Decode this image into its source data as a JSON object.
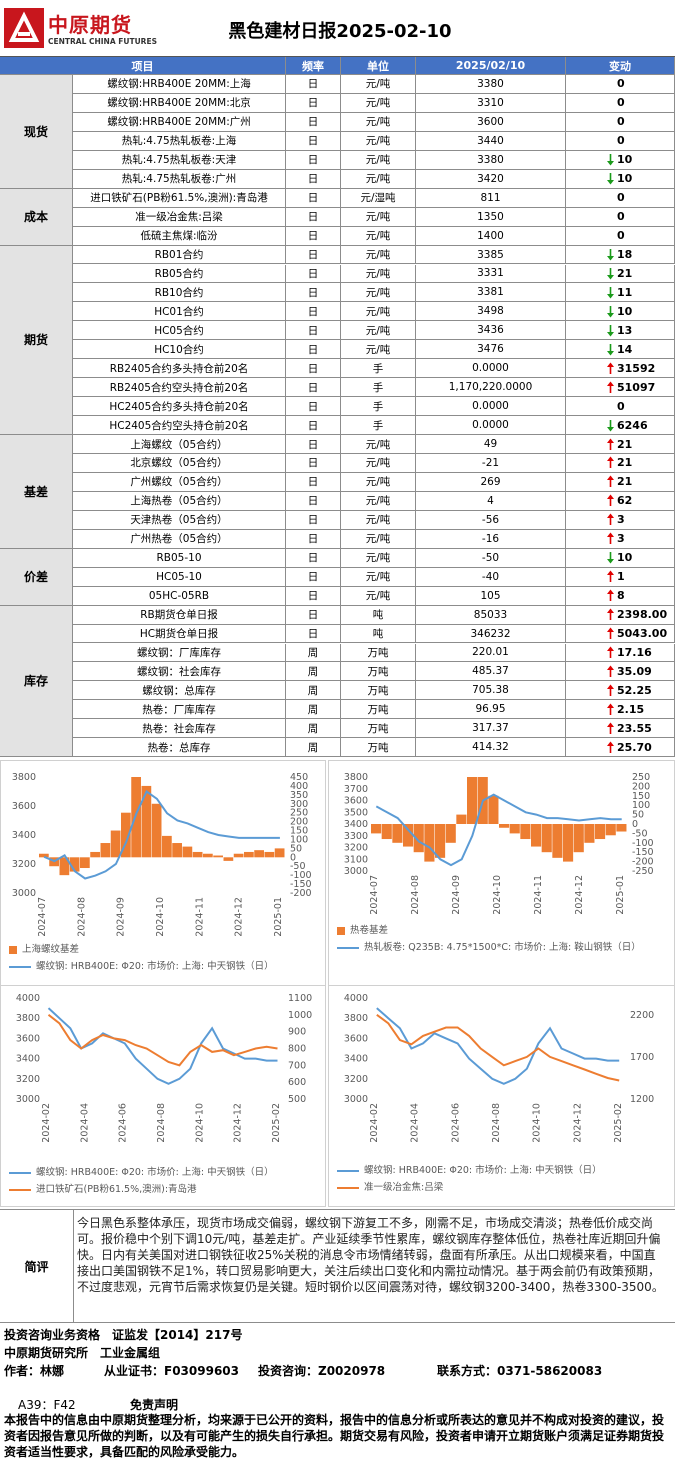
{
  "header": {
    "logo_cn": "中原期货",
    "logo_en": "CENTRAL CHINA FUTURES",
    "title": "黑色建材日报2025-02-10"
  },
  "table": {
    "columns": [
      "项目",
      "频率",
      "单位",
      "2025/02/10",
      "变动"
    ],
    "groups": [
      {
        "name": "现货",
        "rows": [
          {
            "item": "螺纹钢:HRB400E 20MM:上海",
            "freq": "日",
            "unit": "元/吨",
            "value": "3380",
            "change": "0"
          },
          {
            "item": "螺纹钢:HRB400E 20MM:北京",
            "freq": "日",
            "unit": "元/吨",
            "value": "3310",
            "change": "0"
          },
          {
            "item": "螺纹钢:HRB400E 20MM:广州",
            "freq": "日",
            "unit": "元/吨",
            "value": "3600",
            "change": "0"
          },
          {
            "item": "热轧:4.75热轧板卷:上海",
            "freq": "日",
            "unit": "元/吨",
            "value": "3440",
            "change": "0"
          },
          {
            "item": "热轧:4.75热轧板卷:天津",
            "freq": "日",
            "unit": "元/吨",
            "value": "3380",
            "change": "10",
            "trend": "down"
          },
          {
            "item": "热轧:4.75热轧板卷:广州",
            "freq": "日",
            "unit": "元/吨",
            "value": "3420",
            "change": "10",
            "trend": "down"
          }
        ]
      },
      {
        "name": "成本",
        "rows": [
          {
            "item": "进口铁矿石(PB粉61.5%,澳洲):青岛港",
            "freq": "日",
            "unit": "元/湿吨",
            "value": "811",
            "change": "0"
          },
          {
            "item": "准一级冶金焦:吕梁",
            "freq": "日",
            "unit": "元/吨",
            "value": "1350",
            "change": "0"
          },
          {
            "item": "低硫主焦煤:临汾",
            "freq": "日",
            "unit": "元/吨",
            "value": "1400",
            "change": "0"
          }
        ]
      },
      {
        "name": "期货",
        "rows": [
          {
            "item": "RB01合约",
            "freq": "日",
            "unit": "元/吨",
            "value": "3385",
            "change": "18",
            "trend": "down"
          },
          {
            "item": "RB05合约",
            "freq": "日",
            "unit": "元/吨",
            "value": "3331",
            "change": "21",
            "trend": "down"
          },
          {
            "item": "RB10合约",
            "freq": "日",
            "unit": "元/吨",
            "value": "3381",
            "change": "11",
            "trend": "down"
          },
          {
            "item": "HC01合约",
            "freq": "日",
            "unit": "元/吨",
            "value": "3498",
            "change": "10",
            "trend": "down"
          },
          {
            "item": "HC05合约",
            "freq": "日",
            "unit": "元/吨",
            "value": "3436",
            "change": "13",
            "trend": "down"
          },
          {
            "item": "HC10合约",
            "freq": "日",
            "unit": "元/吨",
            "value": "3476",
            "change": "14",
            "trend": "down"
          },
          {
            "item": "RB2405合约多头持仓前20名",
            "freq": "日",
            "unit": "手",
            "value": "0.0000",
            "change": "31592",
            "trend": "up"
          },
          {
            "item": "RB2405合约空头持仓前20名",
            "freq": "日",
            "unit": "手",
            "value": "1,170,220.0000",
            "change": "51097",
            "trend": "up"
          },
          {
            "item": "HC2405合约多头持仓前20名",
            "freq": "日",
            "unit": "手",
            "value": "0.0000",
            "change": "0"
          },
          {
            "item": "HC2405合约空头持仓前20名",
            "freq": "日",
            "unit": "手",
            "value": "0.0000",
            "change": "6246",
            "trend": "down"
          }
        ]
      },
      {
        "name": "基差",
        "rows": [
          {
            "item": "上海螺纹（05合约）",
            "freq": "日",
            "unit": "元/吨",
            "value": "49",
            "change": "21",
            "trend": "up"
          },
          {
            "item": "北京螺纹（05合约）",
            "freq": "日",
            "unit": "元/吨",
            "value": "-21",
            "change": "21",
            "trend": "up"
          },
          {
            "item": "广州螺纹（05合约）",
            "freq": "日",
            "unit": "元/吨",
            "value": "269",
            "change": "21",
            "trend": "up"
          },
          {
            "item": "上海热卷（05合约）",
            "freq": "日",
            "unit": "元/吨",
            "value": "4",
            "change": "62",
            "trend": "up"
          },
          {
            "item": "天津热卷（05合约）",
            "freq": "日",
            "unit": "元/吨",
            "value": "-56",
            "change": "3",
            "trend": "up"
          },
          {
            "item": "广州热卷（05合约）",
            "freq": "日",
            "unit": "元/吨",
            "value": "-16",
            "change": "3",
            "trend": "up"
          }
        ]
      },
      {
        "name": "价差",
        "rows": [
          {
            "item": "RB05-10",
            "freq": "日",
            "unit": "元/吨",
            "value": "-50",
            "change": "10",
            "trend": "down"
          },
          {
            "item": "HC05-10",
            "freq": "日",
            "unit": "元/吨",
            "value": "-40",
            "change": "1",
            "trend": "up"
          },
          {
            "item": "05HC-05RB",
            "freq": "日",
            "unit": "元/吨",
            "value": "105",
            "change": "8",
            "trend": "up"
          }
        ]
      },
      {
        "name": "库存",
        "rows": [
          {
            "item": "RB期货仓单日报",
            "freq": "日",
            "unit": "吨",
            "value": "85033",
            "change": "2398.00",
            "trend": "up"
          },
          {
            "item": "HC期货仓单日报",
            "freq": "日",
            "unit": "吨",
            "value": "346232",
            "change": "5043.00",
            "trend": "up"
          },
          {
            "item": "螺纹钢：厂库库存",
            "freq": "周",
            "unit": "万吨",
            "value": "220.01",
            "change": "17.16",
            "trend": "up"
          },
          {
            "item": "螺纹钢：社会库存",
            "freq": "周",
            "unit": "万吨",
            "value": "485.37",
            "change": "35.09",
            "trend": "up"
          },
          {
            "item": "螺纹钢：总库存",
            "freq": "周",
            "unit": "万吨",
            "value": "705.38",
            "change": "52.25",
            "trend": "up"
          },
          {
            "item": "热卷：厂库库存",
            "freq": "周",
            "unit": "万吨",
            "value": "96.95",
            "change": "2.15",
            "trend": "up"
          },
          {
            "item": "热卷：社会库存",
            "freq": "周",
            "unit": "万吨",
            "value": "317.37",
            "change": "23.55",
            "trend": "up"
          },
          {
            "item": "热卷：总库存",
            "freq": "周",
            "unit": "万吨",
            "value": "414.32",
            "change": "25.70",
            "trend": "up"
          }
        ]
      }
    ]
  },
  "chart_data": [
    {
      "type": "bar-line",
      "xlabels": [
        "2024-07",
        "2024-08",
        "2024-09",
        "2024-10",
        "2024-11",
        "2024-12",
        "2025-01"
      ],
      "ylim": [
        3000,
        3800
      ],
      "yticks": [
        3000,
        3200,
        3400,
        3600,
        3800
      ],
      "y2lim": [
        -200,
        450
      ],
      "y2ticks": [
        -200,
        -150,
        -100,
        -50,
        0,
        50,
        100,
        150,
        200,
        250,
        300,
        350,
        400,
        450
      ],
      "series": [
        {
          "name": "上海螺纹基差",
          "type": "bar",
          "axis": "y2",
          "color": "#ed7d31",
          "values": [
            20,
            -50,
            -100,
            -80,
            -60,
            30,
            80,
            150,
            250,
            450,
            400,
            300,
            120,
            80,
            60,
            30,
            20,
            10,
            -20,
            20,
            30,
            40,
            30,
            50
          ]
        },
        {
          "name": "螺纹钢: HRB400E: Φ20: 市场价: 上海: 中天钢铁（日）",
          "type": "line",
          "color": "#5b9bd5",
          "values": [
            3250,
            3220,
            3260,
            3150,
            3100,
            3120,
            3150,
            3200,
            3350,
            3550,
            3700,
            3650,
            3550,
            3500,
            3480,
            3450,
            3420,
            3400,
            3390,
            3380,
            3380,
            3380,
            3380,
            3380
          ]
        }
      ]
    },
    {
      "type": "bar-line",
      "xlabels": [
        "2024-07",
        "2024-08",
        "2024-09",
        "2024-10",
        "2024-11",
        "2024-12",
        "2025-01"
      ],
      "ylim": [
        3000,
        3800
      ],
      "yticks": [
        3000,
        3100,
        3200,
        3300,
        3400,
        3500,
        3600,
        3700,
        3800
      ],
      "y2lim": [
        -250,
        250
      ],
      "y2ticks": [
        -250,
        -200,
        -150,
        -100,
        -50,
        0,
        50,
        100,
        150,
        200,
        250
      ],
      "series": [
        {
          "name": "热卷基差",
          "type": "bar",
          "axis": "y2",
          "color": "#ed7d31",
          "values": [
            -50,
            -80,
            -100,
            -120,
            -150,
            -200,
            -180,
            -100,
            50,
            250,
            250,
            150,
            -20,
            -50,
            -80,
            -120,
            -150,
            -180,
            -200,
            -150,
            -100,
            -80,
            -60,
            -40
          ]
        },
        {
          "name": "热轧板卷: Q235B: 4.75*1500*C: 市场价: 上海: 鞍山钢铁（日）",
          "type": "line",
          "color": "#5b9bd5",
          "values": [
            3550,
            3500,
            3450,
            3350,
            3250,
            3200,
            3100,
            3050,
            3100,
            3300,
            3600,
            3650,
            3600,
            3550,
            3500,
            3480,
            3450,
            3450,
            3440,
            3430,
            3440,
            3450,
            3440,
            3440
          ]
        }
      ]
    },
    {
      "type": "line",
      "xlabels": [
        "2024-02",
        "2024-04",
        "2024-06",
        "2024-08",
        "2024-10",
        "2024-12",
        "2025-02"
      ],
      "ylim": [
        3000,
        4000
      ],
      "yticks": [
        3000,
        3200,
        3400,
        3600,
        3800,
        4000
      ],
      "y2lim": [
        500,
        1100
      ],
      "y2ticks": [
        500,
        600,
        700,
        800,
        900,
        1000,
        1100
      ],
      "series": [
        {
          "name": "螺纹钢: HRB400E: Φ20: 市场价: 上海: 中天钢铁（日）",
          "type": "line",
          "color": "#5b9bd5",
          "values": [
            3900,
            3800,
            3700,
            3500,
            3550,
            3650,
            3600,
            3550,
            3400,
            3300,
            3200,
            3150,
            3200,
            3300,
            3550,
            3700,
            3500,
            3450,
            3400,
            3400,
            3380,
            3380
          ]
        },
        {
          "name": "进口铁矿石(PB粉61.5%,澳洲):青岛港",
          "type": "line",
          "axis": "y2",
          "color": "#ed7d31",
          "values": [
            1000,
            950,
            850,
            800,
            850,
            880,
            860,
            850,
            820,
            800,
            760,
            720,
            700,
            780,
            820,
            780,
            790,
            760,
            780,
            800,
            810,
            800
          ]
        }
      ]
    },
    {
      "type": "line",
      "xlabels": [
        "2024-02",
        "2024-04",
        "2024-06",
        "2024-08",
        "2024-10",
        "2024-12",
        "2025-02"
      ],
      "ylim": [
        3000,
        4000
      ],
      "yticks": [
        3000,
        3200,
        3400,
        3600,
        3800,
        4000
      ],
      "y2lim": [
        1200,
        2400
      ],
      "y2ticks": [
        1200,
        1700,
        2200
      ],
      "series": [
        {
          "name": "螺纹钢: HRB400E: Φ20: 市场价: 上海: 中天钢铁（日）",
          "type": "line",
          "color": "#5b9bd5",
          "values": [
            3900,
            3800,
            3700,
            3500,
            3550,
            3650,
            3600,
            3550,
            3400,
            3300,
            3200,
            3150,
            3200,
            3300,
            3550,
            3700,
            3500,
            3450,
            3400,
            3400,
            3380,
            3380
          ]
        },
        {
          "name": "准一级冶金焦:吕梁",
          "type": "line",
          "axis": "y2",
          "color": "#ed7d31",
          "values": [
            2200,
            2100,
            1900,
            1850,
            1950,
            2000,
            2050,
            2050,
            1950,
            1800,
            1700,
            1600,
            1650,
            1700,
            1800,
            1700,
            1650,
            1600,
            1550,
            1500,
            1450,
            1420
          ]
        }
      ]
    }
  ],
  "comment": {
    "label": "简评",
    "text": "今日黑色系整体承压，现货市场成交偏弱，螺纹钢下游复工不多，刚需不足，市场成交清淡；热卷低价成交尚可。报价稳中个别下调10元/吨，基差走扩。产业延续季节性累库，螺纹钢库存整体低位，热卷社库近期回升偏快。日内有关美国对进口钢铁征收25%关税的消息令市场情绪转弱，盘面有所承压。从出口规模来看，中国直接出口美国钢铁不足1%，转口贸易影响更大，关注后续出口变化和内需拉动情况。基于两会前仍有政策预期，不过度悲观，元宵节后需求恢复仍是关键。短时钢价以区间震荡对待，螺纹钢3200-3400，热卷3300-3500。"
  },
  "footer": {
    "qualification": "投资咨询业务资格　证监发【2014】217号",
    "dept": "中原期货研究所　工业金属组",
    "author": "作者：林娜",
    "cert": "从业证书：F03099603",
    "consult": "投资咨询：Z0020978",
    "contact": "联系方式：0371-58620083",
    "code": "A39：F42",
    "disclaimer_title": "免责声明",
    "disclaimer": "本报告中的信息由中原期货整理分析，均来源于已公开的资料，报告中的信息分析或所表达的意见并不构成对投资的建议，投资者因报告意见所做的判断，以及有可能产生的损失自行承担。期货交易有风险，投资者申请开立期货账户须满足证券期货投资者适当性要求，具备匹配的风险承受能力。"
  }
}
